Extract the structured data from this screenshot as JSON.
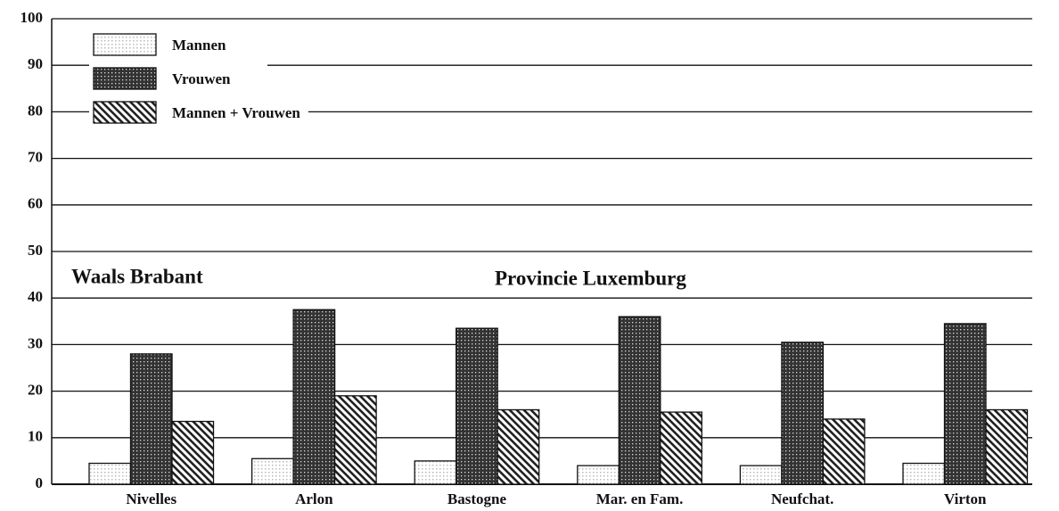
{
  "chart_data": {
    "type": "bar",
    "categories": [
      "Nivelles",
      "Arlon",
      "Bastogne",
      "Mar. en Fam.",
      "Neufchat.",
      "Virton"
    ],
    "series": [
      {
        "name": "Mannen",
        "color": "#bbbbbb",
        "values": [
          4.5,
          5.5,
          5,
          4,
          4,
          4.5
        ]
      },
      {
        "name": "Vrouwen",
        "color": "#333333",
        "values": [
          28,
          37.5,
          33.5,
          36,
          30.5,
          34.5
        ]
      },
      {
        "name": "Mannen + Vrouwen",
        "color": "#222222",
        "values": [
          13.5,
          19,
          16,
          15.5,
          14,
          16
        ]
      }
    ],
    "annotations": [
      "Waals Brabant",
      "Provincie Luxemburg"
    ],
    "ylim": [
      0,
      100
    ],
    "yticks": [
      0,
      10,
      20,
      30,
      40,
      50,
      60,
      70,
      80,
      90,
      100
    ],
    "grid": true
  }
}
